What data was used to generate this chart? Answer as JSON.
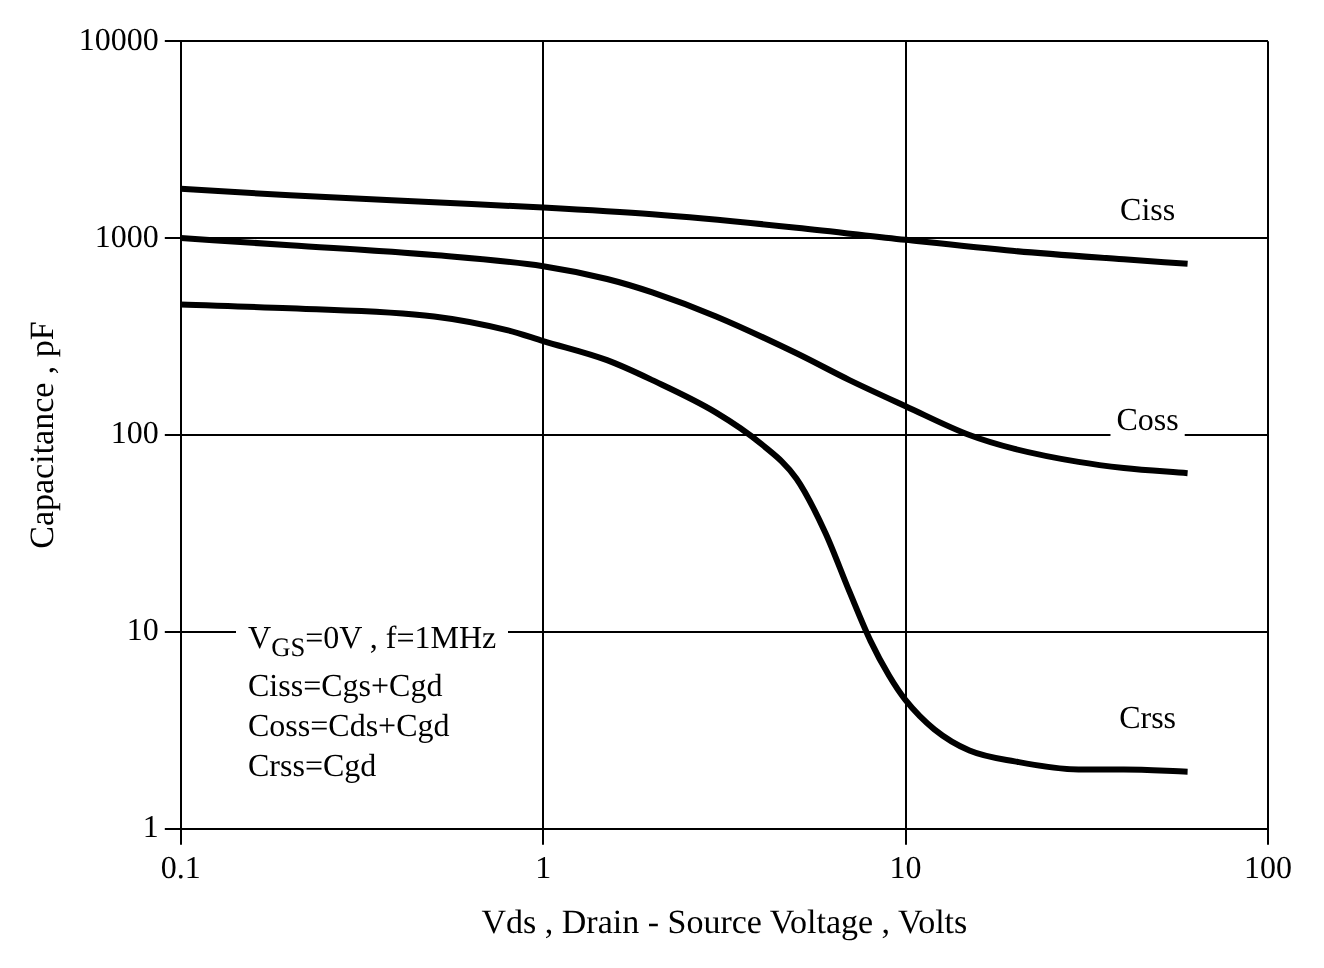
{
  "chart_data": {
    "type": "line",
    "xlabel": "Vds , Drain - Source Voltage , Volts",
    "ylabel": "Capacitance , pF",
    "log": "xy",
    "xlim": [
      0.1,
      100
    ],
    "ylim": [
      1,
      10000
    ],
    "xticks": [
      0.1,
      1,
      10,
      100
    ],
    "yticks": [
      1,
      10,
      100,
      1000,
      10000
    ],
    "grid": true,
    "legend": false,
    "marker": "none",
    "line_style": "solid",
    "annotations": [
      "V$_{GS}$=0V , f=1MHz",
      "Ciss=Cgs+Cgd",
      "Coss=Cds+Cgd",
      "Crss=Cgd"
    ],
    "series": [
      {
        "name": "Ciss",
        "color": "#000000",
        "x": [
          0.1,
          0.2,
          0.5,
          1,
          2,
          5,
          10,
          20,
          40,
          60
        ],
        "values": [
          1780,
          1650,
          1520,
          1430,
          1320,
          1130,
          980,
          860,
          780,
          740
        ]
      },
      {
        "name": "Coss",
        "color": "#000000",
        "x": [
          0.1,
          0.2,
          0.5,
          1,
          1.5,
          2,
          3,
          5,
          7,
          10,
          15,
          20,
          30,
          40,
          60
        ],
        "values": [
          1000,
          920,
          820,
          720,
          620,
          530,
          400,
          260,
          190,
          140,
          100,
          85,
          73,
          68,
          64
        ]
      },
      {
        "name": "Crss",
        "color": "#000000",
        "x": [
          0.1,
          0.2,
          0.5,
          0.8,
          1,
          1.5,
          2,
          3,
          4,
          5,
          6,
          7,
          8,
          9,
          10,
          12,
          15,
          20,
          30,
          40,
          60
        ],
        "values": [
          460,
          440,
          400,
          340,
          300,
          240,
          190,
          130,
          90,
          60,
          32,
          16,
          9,
          6,
          4.5,
          3.2,
          2.5,
          2.2,
          2.0,
          2.0,
          1.95
        ]
      }
    ]
  }
}
